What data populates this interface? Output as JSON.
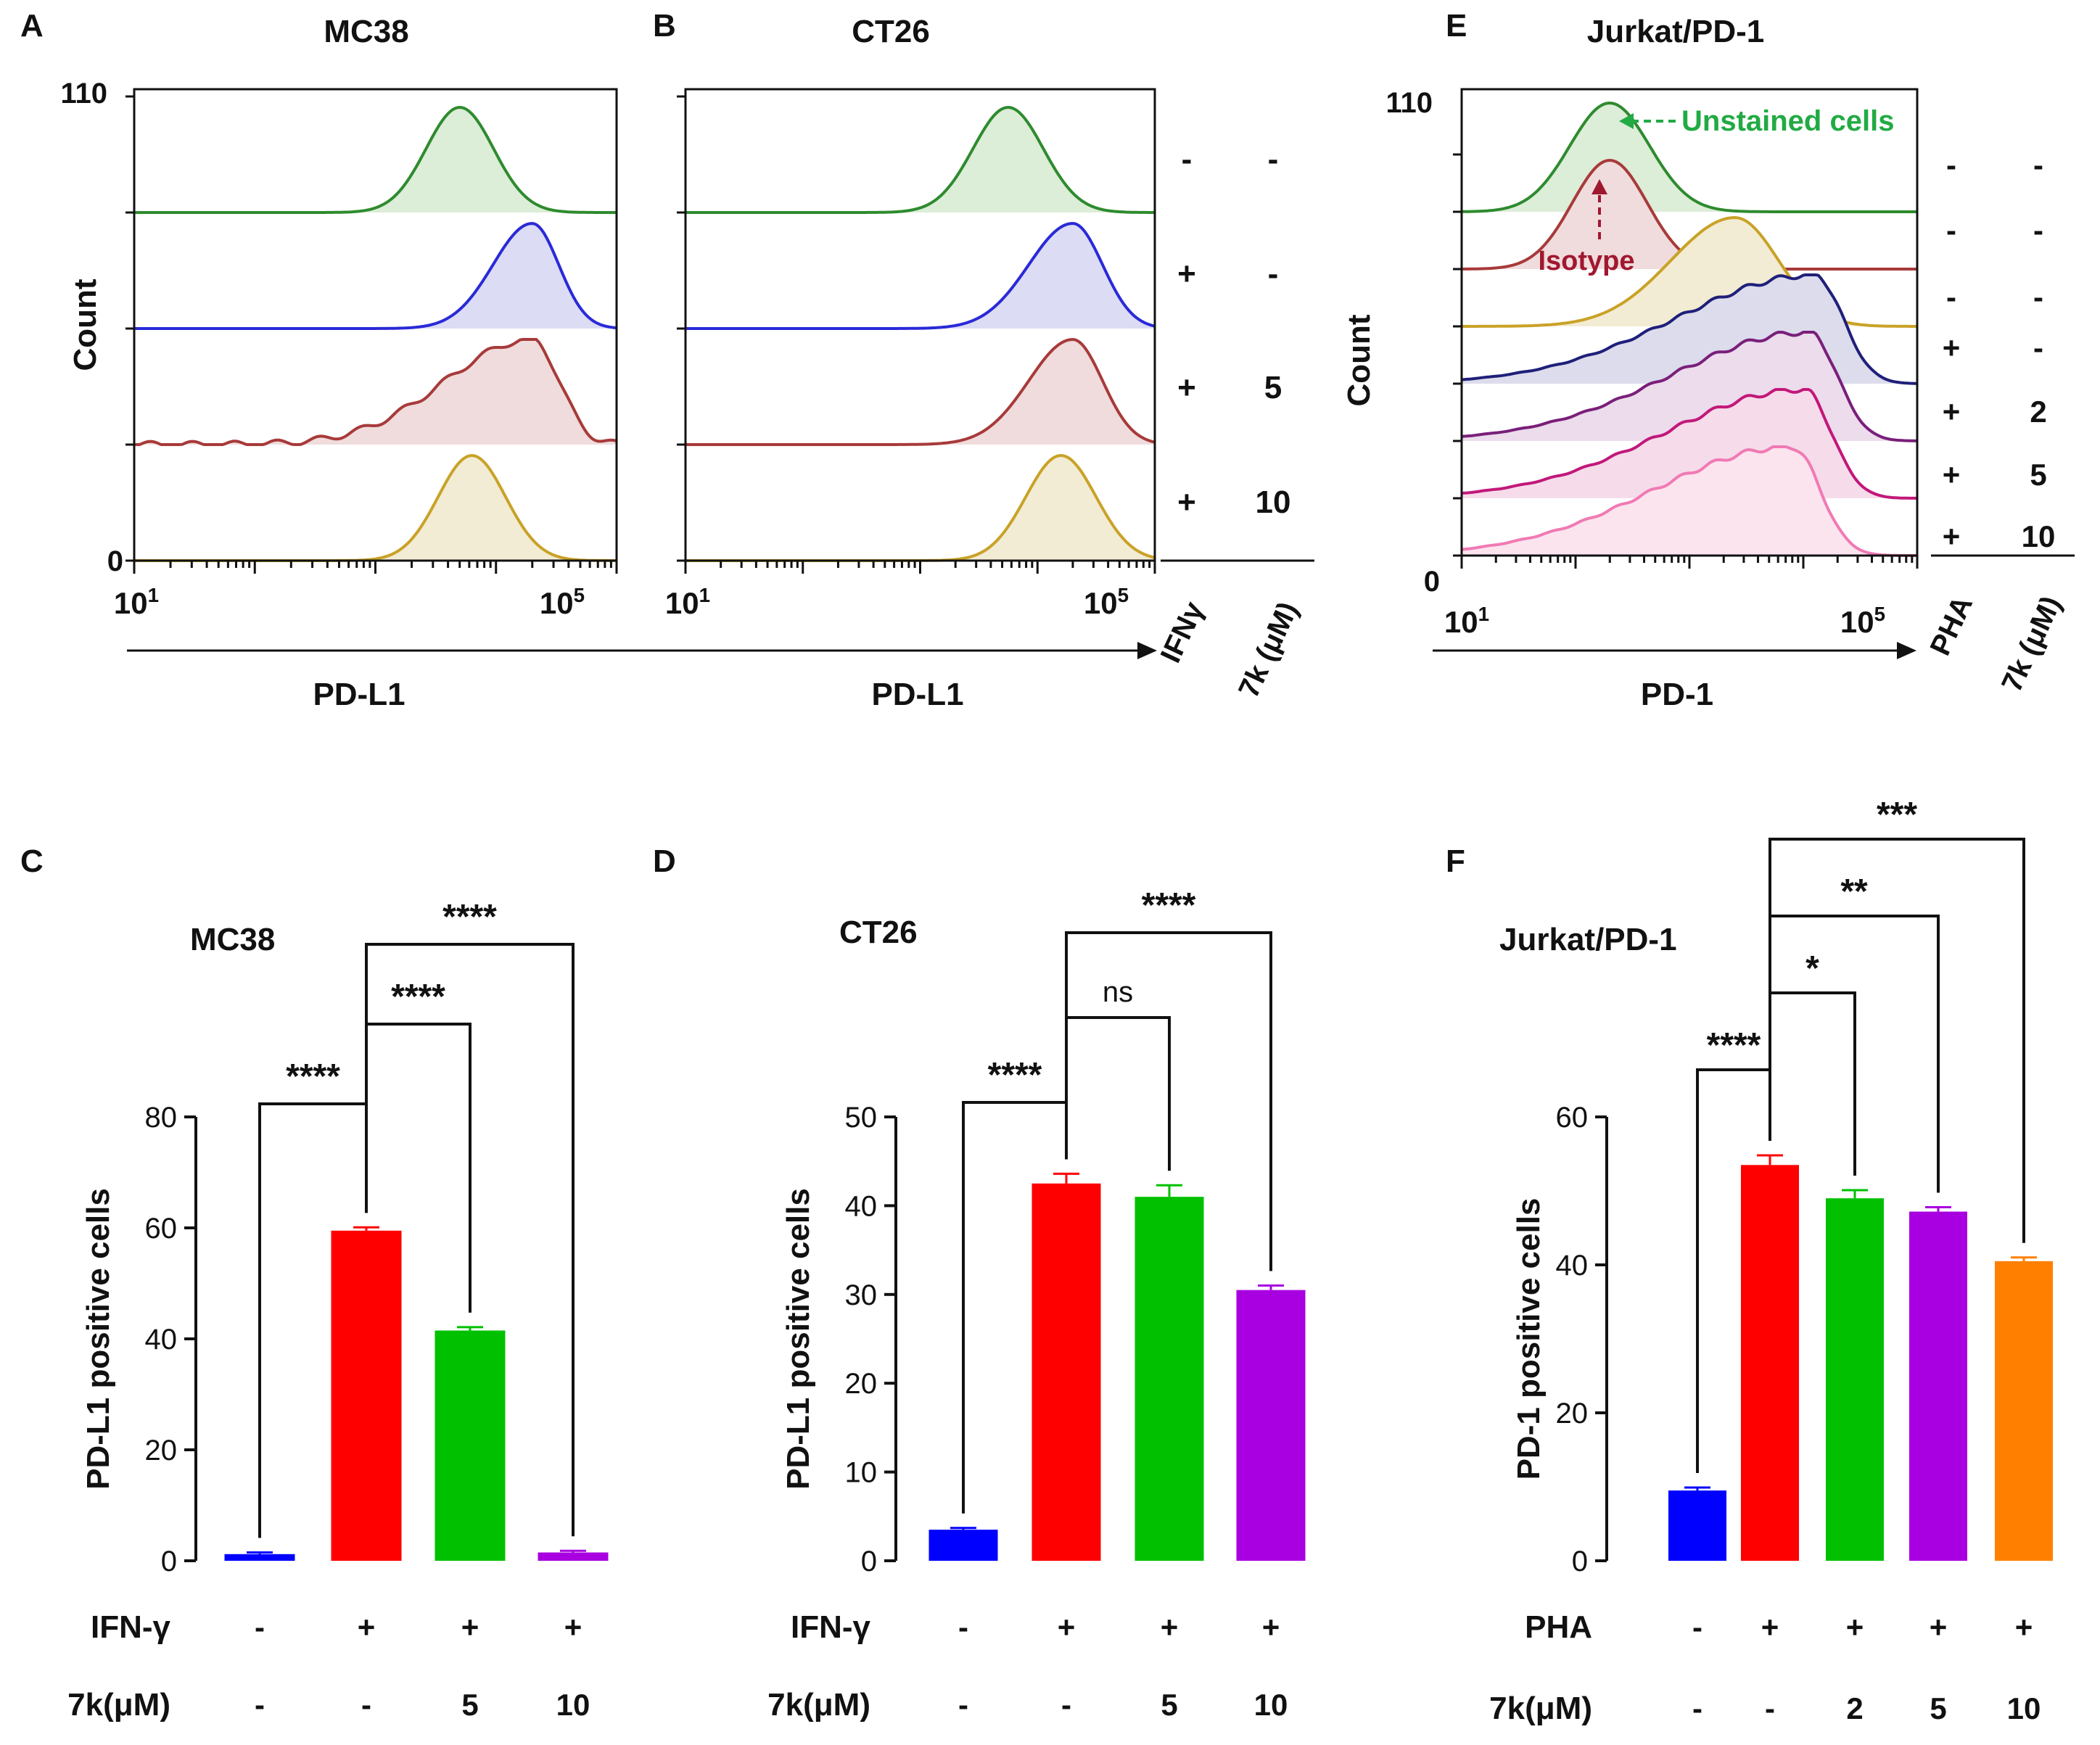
{
  "chart_data": [
    {
      "panel": "A",
      "type": "histogram",
      "title": "MC38",
      "ylabel": "Count",
      "xlabel": "PD-L1",
      "y_ticks": [
        "110",
        "0"
      ],
      "x_ticks": [
        "10",
        "10"
      ],
      "x_tick_exp": [
        "1",
        "5"
      ],
      "x_range_log10": [
        1,
        5
      ],
      "conditions_header": [
        "IFNγ",
        "7k (μM)"
      ],
      "conditions": [
        [
          "-",
          "-"
        ],
        [
          "+",
          "-"
        ],
        [
          "+",
          "5"
        ],
        [
          "+",
          "10"
        ]
      ],
      "series": [
        {
          "name": "IFNγ - / 7k -",
          "color": "#2e8b2e",
          "fill": "#dcedd8",
          "peak_log10": 3.7,
          "width": 0.28,
          "shape": "sym"
        },
        {
          "name": "IFNγ + / 7k -",
          "color": "#2a2ad8",
          "fill": "#dcdcf4",
          "peak_log10": 4.3,
          "width": 0.26,
          "shape": "tailL"
        },
        {
          "name": "IFNγ + / 7k 5",
          "color": "#a83a3a",
          "fill": "#f0dcdc",
          "peak_log10": 4.3,
          "width": 0.3,
          "shape": "broad"
        },
        {
          "name": "IFNγ + / 7k 10",
          "color": "#c9a227",
          "fill": "#f3ecd4",
          "peak_log10": 3.8,
          "width": 0.28,
          "shape": "sym"
        }
      ]
    },
    {
      "panel": "B",
      "type": "histogram",
      "title": "CT26",
      "xlabel": "PD-L1",
      "x_ticks": [
        "10",
        "10"
      ],
      "x_tick_exp": [
        "1",
        "5"
      ],
      "x_range_log10": [
        1,
        5
      ],
      "series": [
        {
          "name": "IFNγ - / 7k -",
          "color": "#2e8b2e",
          "fill": "#dcedd8",
          "peak_log10": 3.75,
          "width": 0.3,
          "shape": "sym"
        },
        {
          "name": "IFNγ + / 7k -",
          "color": "#2a2ad8",
          "fill": "#dcdcf4",
          "peak_log10": 4.3,
          "width": 0.3,
          "shape": "tailL"
        },
        {
          "name": "IFNγ + / 7k 5",
          "color": "#a83a3a",
          "fill": "#f0dcdc",
          "peak_log10": 4.3,
          "width": 0.3,
          "shape": "tailL"
        },
        {
          "name": "IFNγ + / 7k 10",
          "color": "#c9a227",
          "fill": "#f3ecd4",
          "peak_log10": 4.2,
          "width": 0.3,
          "shape": "sym"
        }
      ]
    },
    {
      "panel": "E",
      "type": "histogram",
      "title": "Jurkat/PD-1",
      "ylabel": "Count",
      "xlabel": "PD-1",
      "y_ticks": [
        "110",
        "0"
      ],
      "x_ticks": [
        "10",
        "10"
      ],
      "x_tick_exp": [
        "1",
        "5"
      ],
      "x_range_log10": [
        1,
        5
      ],
      "annotations": [
        "Unstained cells",
        "Isotype"
      ],
      "conditions_header": [
        "PHA",
        "7k (μM)"
      ],
      "conditions": [
        [
          "-",
          "-"
        ],
        [
          "-",
          "-"
        ],
        [
          "-",
          "-"
        ],
        [
          "+",
          "-"
        ],
        [
          "+",
          "2"
        ],
        [
          "+",
          "5"
        ],
        [
          "+",
          "10"
        ]
      ],
      "series": [
        {
          "name": "Unstained cells",
          "color": "#2e8b2e",
          "fill": "#dcedd8",
          "peak_log10": 2.3,
          "width": 0.35,
          "shape": "sym"
        },
        {
          "name": "Isotype",
          "color": "#a83a3a",
          "fill": "#f0dcdc",
          "peak_log10": 2.3,
          "width": 0.33,
          "shape": "sym"
        },
        {
          "name": "PHA - / 7k -",
          "color": "#c9a227",
          "fill": "#f3ecd4",
          "peak_log10": 3.4,
          "width": 0.45,
          "shape": "tailL"
        },
        {
          "name": "PHA + / 7k -",
          "color": "#1f1f7a",
          "fill": "#dcdcec",
          "peak_log10": 4.1,
          "width": 0.55,
          "shape": "skew"
        },
        {
          "name": "PHA + / 7k 2",
          "color": "#7a1f7a",
          "fill": "#ecdcec",
          "peak_log10": 4.05,
          "width": 0.55,
          "shape": "skew"
        },
        {
          "name": "PHA + / 7k 5",
          "color": "#c2187a",
          "fill": "#f6dcea",
          "peak_log10": 4.0,
          "width": 0.55,
          "shape": "skew"
        },
        {
          "name": "PHA + / 7k 10",
          "color": "#f07ab4",
          "fill": "#fce4ef",
          "peak_log10": 3.9,
          "width": 0.55,
          "shape": "skew"
        }
      ]
    },
    {
      "panel": "C",
      "type": "bar",
      "title": "MC38",
      "ylabel": "PD-L1 positive cells",
      "ylim": [
        0,
        80
      ],
      "yticks": [
        0,
        20,
        40,
        60,
        80
      ],
      "categories": [
        "IFN-γ - / 7k -",
        "IFN-γ + / 7k -",
        "IFN-γ + / 7k 5",
        "IFN-γ + / 7k 10"
      ],
      "values": [
        1.2,
        59.5,
        41.5,
        1.5
      ],
      "errors": [
        0.3,
        0.6,
        0.6,
        0.3
      ],
      "colors": [
        "#0000ff",
        "#ff0000",
        "#00c000",
        "#a800e0"
      ],
      "row_labels": [
        "IFN-γ",
        "7k(μM)"
      ],
      "rows": [
        [
          "-",
          "+",
          "+",
          "+"
        ],
        [
          "-",
          "-",
          "5",
          "10"
        ]
      ],
      "comparisons": [
        {
          "from": 1,
          "to": 0,
          "label": "****"
        },
        {
          "from": 1,
          "to": 2,
          "label": "****"
        },
        {
          "from": 1,
          "to": 3,
          "label": "****"
        }
      ]
    },
    {
      "panel": "D",
      "type": "bar",
      "title": "CT26",
      "ylabel": "PD-L1 positive cells",
      "ylim": [
        0,
        50
      ],
      "yticks": [
        0,
        10,
        20,
        30,
        40,
        50
      ],
      "categories": [
        "IFN-γ - / 7k -",
        "IFN-γ + / 7k -",
        "IFN-γ + / 7k 5",
        "IFN-γ + / 7k 10"
      ],
      "values": [
        3.5,
        42.5,
        41.0,
        30.5
      ],
      "errors": [
        0.2,
        1.1,
        1.3,
        0.5
      ],
      "colors": [
        "#0000ff",
        "#ff0000",
        "#00c000",
        "#a800e0"
      ],
      "row_labels": [
        "IFN-γ",
        "7k(μM)"
      ],
      "rows": [
        [
          "-",
          "+",
          "+",
          "+"
        ],
        [
          "-",
          "-",
          "5",
          "10"
        ]
      ],
      "comparisons": [
        {
          "from": 1,
          "to": 0,
          "label": "****"
        },
        {
          "from": 1,
          "to": 2,
          "label": "ns"
        },
        {
          "from": 1,
          "to": 3,
          "label": "****"
        }
      ]
    },
    {
      "panel": "F",
      "type": "bar",
      "title": "Jurkat/PD-1",
      "ylabel": "PD-1 positive cells",
      "ylim": [
        0,
        60
      ],
      "yticks": [
        0,
        20,
        40,
        60
      ],
      "categories": [
        "PHA - / 7k -",
        "PHA + / 7k -",
        "PHA + / 7k 2",
        "PHA + / 7k 5",
        "PHA + / 7k 10"
      ],
      "values": [
        9.5,
        53.5,
        49.0,
        47.2,
        40.5
      ],
      "errors": [
        0.4,
        1.3,
        1.1,
        0.6,
        0.5
      ],
      "colors": [
        "#0000ff",
        "#ff0000",
        "#00c000",
        "#a800e0",
        "#ff8000"
      ],
      "row_labels": [
        "PHA",
        "7k(μM)"
      ],
      "rows": [
        [
          "-",
          "+",
          "+",
          "+",
          "+"
        ],
        [
          "-",
          "-",
          "2",
          "5",
          "10"
        ]
      ],
      "comparisons": [
        {
          "from": 1,
          "to": 0,
          "label": "****"
        },
        {
          "from": 1,
          "to": 2,
          "label": "*"
        },
        {
          "from": 1,
          "to": 3,
          "label": "**"
        },
        {
          "from": 1,
          "to": 4,
          "label": "***"
        }
      ]
    }
  ]
}
